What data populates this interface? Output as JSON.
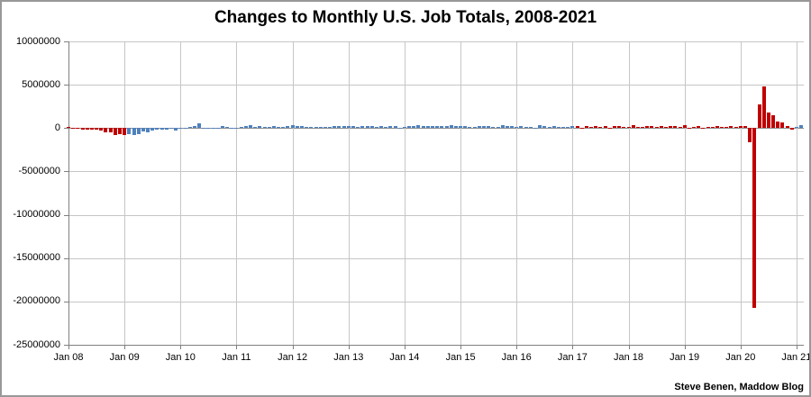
{
  "header": {
    "title": "Changes to Monthly U.S. Job Totals, 2008-2021"
  },
  "footer": {
    "attribution": "Steve Benen, Maddow Blog"
  },
  "chart_data": {
    "type": "bar",
    "title": "Changes to Monthly U.S. Job Totals, 2008-2021",
    "xlabel": "",
    "ylabel": "",
    "start_month": "Jan 2008",
    "end_month": "Feb 2021",
    "values_unit": "thousands of jobs (monthly change, multiply by 1000 for axis units)",
    "ylim": [
      -25000000,
      10000000
    ],
    "grid": true,
    "legend": "none",
    "y_axis_tick_values": [
      10000000,
      5000000,
      0,
      -5000000,
      -10000000,
      -15000000,
      -20000000,
      -25000000
    ],
    "y_axis_tick_labels": [
      "10000000",
      "5000000",
      "0",
      "-5000000",
      "-10000000",
      "-15000000",
      "-20000000",
      "-25000000"
    ],
    "x_axis_tick_labels": [
      "Jan 08",
      "Jan 09",
      "Jan 10",
      "Jan 11",
      "Jan 12",
      "Jan 13",
      "Jan 14",
      "Jan 15",
      "Jan 16",
      "Jan 17",
      "Jan 18",
      "Jan 19",
      "Jan 20",
      "Jan 21"
    ],
    "values_thousands": [
      97,
      -86,
      -80,
      -214,
      -182,
      -172,
      -210,
      -259,
      -452,
      -474,
      -765,
      -697,
      -798,
      -701,
      -826,
      -684,
      -354,
      -467,
      -327,
      -216,
      -227,
      -198,
      -6,
      -283,
      18,
      -50,
      156,
      251,
      516,
      -122,
      -61,
      -42,
      -57,
      241,
      137,
      71,
      70,
      168,
      212,
      322,
      102,
      217,
      106,
      122,
      221,
      183,
      164,
      196,
      360,
      226,
      243,
      96,
      110,
      88,
      160,
      150,
      161,
      225,
      203,
      214,
      197,
      280,
      141,
      203,
      199,
      201,
      149,
      202,
      164,
      237,
      274,
      84,
      144,
      222,
      203,
      304,
      229,
      267,
      243,
      203,
      271,
      243,
      321,
      256,
      201,
      266,
      119,
      187,
      260,
      245,
      223,
      150,
      120,
      295,
      280,
      271,
      168,
      233,
      186,
      144,
      43,
      297,
      291,
      176,
      249,
      124,
      164,
      155,
      216,
      232,
      50,
      207,
      145,
      210,
      138,
      208,
      18,
      261,
      216,
      175,
      176,
      324,
      155,
      175,
      268,
      208,
      178,
      282,
      108,
      277,
      196,
      182,
      312,
      56,
      153,
      216,
      85,
      182,
      166,
      219,
      184,
      185,
      261,
      184,
      214,
      251,
      -1683,
      -20787,
      2725,
      4781,
      1761,
      1493,
      716,
      680,
      264,
      -227,
      166,
      379
    ],
    "color_segments": [
      {
        "start_index": 0,
        "end_index": 12,
        "color": "#C00000"
      },
      {
        "start_index": 13,
        "end_index": 108,
        "color": "#4F81BD"
      },
      {
        "start_index": 109,
        "end_index": 155,
        "color": "#C00000"
      },
      {
        "start_index": 156,
        "end_index": 157,
        "color": "#4F81BD"
      }
    ],
    "colors": {
      "red_bars": "#C00000",
      "blue_bars": "#4F81BD",
      "gridline": "#C6C6C6",
      "axis": "#808080",
      "text": "#000000",
      "background": "#FFFFFF",
      "frame_border": "#989898"
    }
  }
}
